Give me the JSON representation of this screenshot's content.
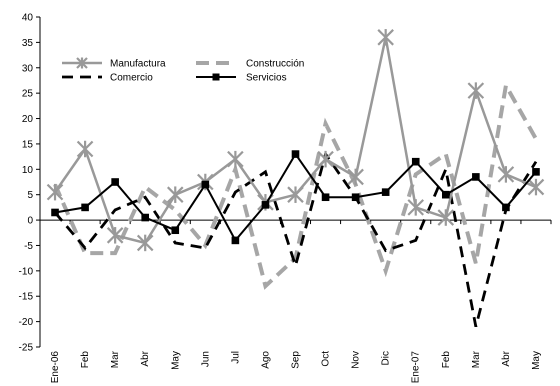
{
  "chart_data": {
    "type": "line",
    "categories": [
      "Ene-06",
      "Feb",
      "Mar",
      "Abr",
      "May",
      "Jun",
      "Jul",
      "Ago",
      "Sep",
      "Oct",
      "Nov",
      "Dic",
      "Ene-07",
      "Feb",
      "Mar",
      "Abr",
      "May"
    ],
    "ylim": [
      -25,
      40
    ],
    "yticks": [
      -25,
      -20,
      -15,
      -10,
      -5,
      0,
      5,
      10,
      15,
      20,
      25,
      30,
      35,
      40
    ],
    "grid": false,
    "legend_position": "top-left",
    "series": [
      {
        "name": "Manufactura",
        "color": "#999999",
        "style": "solid-asterisk",
        "values": [
          5.5,
          14,
          -3,
          -4.5,
          5,
          7.5,
          12,
          3.5,
          5,
          12,
          8.5,
          36,
          2.5,
          0.5,
          25.5,
          9,
          6.5
        ]
      },
      {
        "name": "Construcción",
        "color": "#a6a6a6",
        "style": "dashed",
        "values": [
          7,
          -6.5,
          -6.5,
          6.5,
          2,
          -5,
          10,
          -13,
          -7.5,
          19,
          7,
          -10,
          9,
          13,
          -8.5,
          26.5,
          16
        ]
      },
      {
        "name": "Comercio",
        "color": "#000000",
        "style": "dashed",
        "values": [
          1.5,
          -5.5,
          2,
          4.5,
          -4.5,
          -5.5,
          5.5,
          9.5,
          -9,
          13,
          4.5,
          -6,
          -4,
          10,
          -21,
          2,
          11.5
        ]
      },
      {
        "name": "Servicios",
        "color": "#000000",
        "style": "solid-square",
        "values": [
          1.5,
          2.5,
          7.5,
          0.5,
          -2,
          7,
          -4,
          3,
          13,
          4.5,
          4.5,
          5.5,
          11.5,
          5,
          8.5,
          2.5,
          9.5
        ]
      }
    ],
    "legend_order": [
      "Manufactura",
      "Construcción",
      "Comercio",
      "Servicios"
    ]
  }
}
